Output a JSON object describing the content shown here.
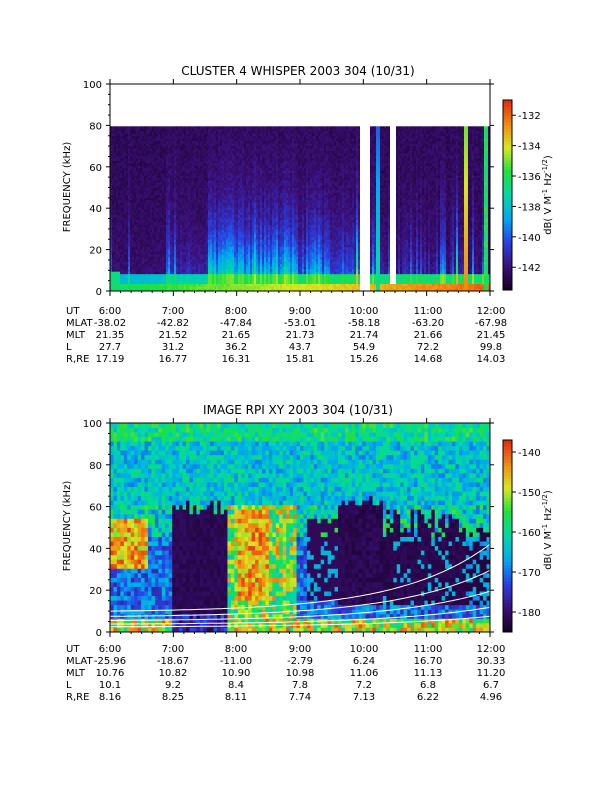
{
  "colors": {
    "background": "#ffffff",
    "axis": "#000000",
    "empty_band": "#000000",
    "overlay_lines": "#ffffff",
    "colormap": [
      "#14001f",
      "#3c0f78",
      "#2a3fe0",
      "#00a8f0",
      "#00d8a8",
      "#20e040",
      "#d8e820",
      "#f08a10",
      "#e02a10"
    ]
  },
  "chart_data": [
    {
      "type": "heatmap",
      "title": "CLUSTER 4 WHISPER 2003 304 (10/31)",
      "xlabel": "",
      "ylabel": "FREQUENCY (kHz)",
      "xlim": [
        6.0,
        12.0
      ],
      "ylim": [
        0,
        100
      ],
      "x_tick_labels": [
        "6:00",
        "7:00",
        "8:00",
        "9:00",
        "10:00",
        "11:00",
        "12:00"
      ],
      "y_ticks": [
        0,
        20,
        40,
        60,
        80,
        100
      ],
      "data_top_kHz": 80,
      "colorbar": {
        "label": "dB( V M",
        "label_sup1": "-1",
        "label_mid": " Hz",
        "label_sup2": "-1/2",
        "label_end": ")",
        "range": [
          -143.5,
          -131
        ],
        "ticks": [
          -132,
          -134,
          -136,
          -138,
          -140,
          -142
        ]
      },
      "ephemeris": {
        "rows": [
          {
            "label": "UT",
            "values": [
              "6:00",
              "7:00",
              "8:00",
              "9:00",
              "10:00",
              "11:00",
              "12:00"
            ]
          },
          {
            "label": "MLAT",
            "values": [
              "-38.02",
              "-42.82",
              "-47.84",
              "-53.01",
              "-58.18",
              "-63.20",
              "-67.98"
            ]
          },
          {
            "label": "MLT",
            "values": [
              "21.35",
              "21.52",
              "21.65",
              "21.73",
              "21.74",
              "21.66",
              "21.45"
            ]
          },
          {
            "label": "L",
            "values": [
              "27.7",
              "31.2",
              "36.2",
              "43.7",
              "54.9",
              "72.2",
              "99.8"
            ]
          },
          {
            "label": "R,RE",
            "values": [
              "17.19",
              "16.77",
              "16.31",
              "15.81",
              "15.26",
              "14.68",
              "14.03"
            ]
          }
        ]
      }
    },
    {
      "type": "heatmap",
      "title": "IMAGE RPI XY 2003 304 (10/31)",
      "xlabel": "",
      "ylabel": "FREQUENCY (kHz)",
      "xlim": [
        6.0,
        12.0
      ],
      "ylim": [
        0,
        100
      ],
      "x_tick_labels": [
        "6:00",
        "7:00",
        "8:00",
        "9:00",
        "10:00",
        "11:00",
        "12:00"
      ],
      "y_ticks": [
        0,
        20,
        40,
        60,
        80,
        100
      ],
      "colorbar": {
        "label": "dB( V M",
        "label_sup1": "-1",
        "label_mid": " Hz",
        "label_sup2": "-1/2",
        "label_end": ")",
        "range": [
          -185,
          -137
        ],
        "ticks": [
          -140,
          -150,
          -160,
          -170,
          -180
        ]
      },
      "ephemeris": {
        "rows": [
          {
            "label": "UT",
            "values": [
              "6:00",
              "7:00",
              "8:00",
              "9:00",
              "10:00",
              "11:00",
              "12:00"
            ]
          },
          {
            "label": "MLAT",
            "values": [
              "-25.96",
              "-18.67",
              "-11.00",
              "-2.79",
              "6.24",
              "16.70",
              "30.33"
            ]
          },
          {
            "label": "MLT",
            "values": [
              "10.76",
              "10.82",
              "10.90",
              "10.98",
              "11.06",
              "11.13",
              "11.20"
            ]
          },
          {
            "label": "L",
            "values": [
              "10.1",
              "9.2",
              "8.4",
              "7.8",
              "7.2",
              "6.8",
              "6.7"
            ]
          },
          {
            "label": "R,RE",
            "values": [
              "8.16",
              "8.25",
              "8.11",
              "7.74",
              "7.13",
              "6.22",
              "4.96"
            ]
          }
        ]
      }
    }
  ]
}
